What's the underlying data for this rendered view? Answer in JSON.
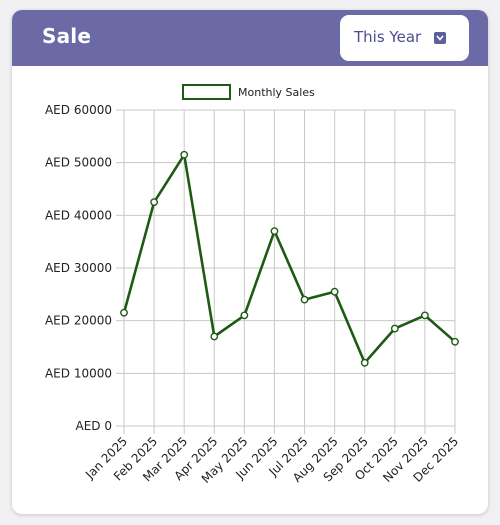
{
  "header": {
    "title": "Sale",
    "period_select": {
      "selected": "This Year",
      "icon": "chevron-down-icon"
    }
  },
  "colors": {
    "header_bg": "#6b6aa7",
    "line": "#1e5a14",
    "grid": "#c8c8c8"
  },
  "chart_data": {
    "type": "line",
    "categories": [
      "Jan 2025",
      "Feb 2025",
      "Mar 2025",
      "Apr 2025",
      "May 2025",
      "Jun 2025",
      "Jul 2025",
      "Aug 2025",
      "Sep 2025",
      "Oct 2025",
      "Nov 2025",
      "Dec 2025"
    ],
    "series": [
      {
        "name": "Monthly Sales",
        "values": [
          21500,
          42500,
          51500,
          17000,
          21000,
          37000,
          24000,
          25500,
          12000,
          18500,
          21000,
          16000
        ]
      }
    ],
    "y_ticks": [
      "AED 0",
      "AED 10000",
      "AED 20000",
      "AED 30000",
      "AED 40000",
      "AED 50000",
      "AED 60000"
    ],
    "ylim": [
      0,
      60000
    ],
    "legend_position": "top",
    "grid": true
  }
}
